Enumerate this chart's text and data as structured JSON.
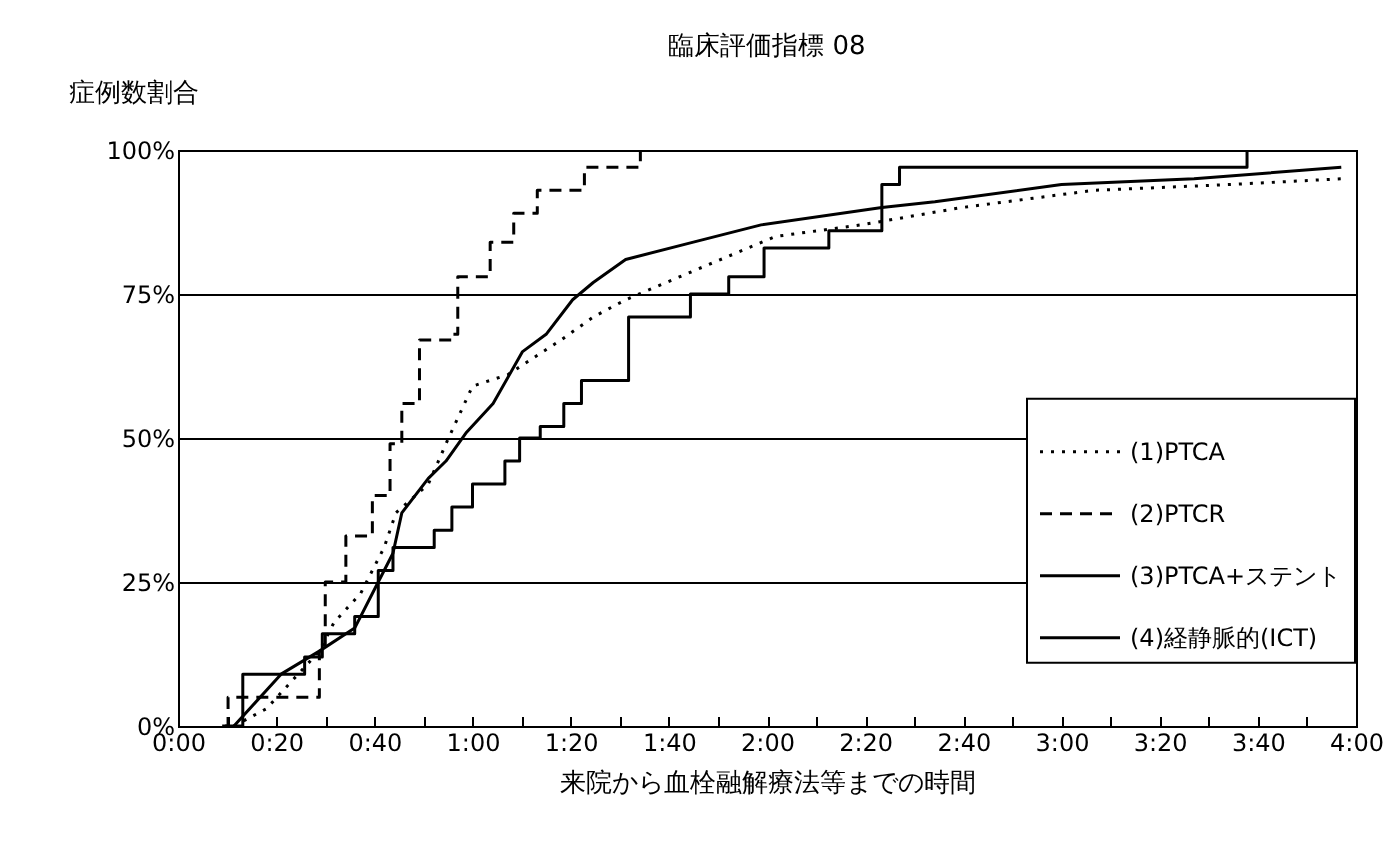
{
  "chart_data": {
    "type": "step",
    "title": "臨床評価指標 08",
    "xlabel": "来院から血栓融解療法等までの時間",
    "ylabel": "症例数割合",
    "xlim": [
      0,
      4
    ],
    "ylim": [
      0,
      100
    ],
    "xticks": [
      {
        "value": 0,
        "label": "0:00"
      },
      {
        "value": 0.1667,
        "label": null
      },
      {
        "value": 0.3333,
        "label": "0:20"
      },
      {
        "value": 0.5,
        "label": null
      },
      {
        "value": 0.6667,
        "label": "0:40"
      },
      {
        "value": 0.8333,
        "label": null
      },
      {
        "value": 1,
        "label": "1:00"
      },
      {
        "value": 1.1667,
        "label": null
      },
      {
        "value": 1.3333,
        "label": "1:20"
      },
      {
        "value": 1.5,
        "label": null
      },
      {
        "value": 1.6667,
        "label": "1:40"
      },
      {
        "value": 1.8333,
        "label": null
      },
      {
        "value": 2,
        "label": "2:00"
      },
      {
        "value": 2.1667,
        "label": null
      },
      {
        "value": 2.3333,
        "label": "2:20"
      },
      {
        "value": 2.5,
        "label": null
      },
      {
        "value": 2.6667,
        "label": "2:40"
      },
      {
        "value": 2.8333,
        "label": null
      },
      {
        "value": 3,
        "label": "3:00"
      },
      {
        "value": 3.1667,
        "label": null
      },
      {
        "value": 3.3333,
        "label": "3:20"
      },
      {
        "value": 3.5,
        "label": null
      },
      {
        "value": 3.6667,
        "label": "3:40"
      },
      {
        "value": 3.8333,
        "label": null
      },
      {
        "value": 4,
        "label": "4:00"
      }
    ],
    "yticks": [
      {
        "value": 0,
        "label": "0%"
      },
      {
        "value": 25,
        "label": "25%"
      },
      {
        "value": 50,
        "label": "50%"
      },
      {
        "value": 75,
        "label": "75%"
      },
      {
        "value": 100,
        "label": "100%"
      }
    ],
    "grid": "y",
    "legend": "right",
    "series": [
      {
        "name": "(1)PTCA",
        "type": "line",
        "line_style": "dotted",
        "color": "#000000",
        "x": [
          0.19,
          0.3,
          0.48,
          0.53,
          0.62,
          0.7,
          0.74,
          0.85,
          0.91,
          1.0,
          1.12,
          1.21,
          1.3,
          1.41,
          1.52,
          1.75,
          2.03,
          2.32,
          2.66,
          3.11,
          3.57,
          3.95
        ],
        "values": [
          0,
          3,
          13,
          18,
          23,
          31,
          37,
          42,
          49,
          59,
          61,
          64,
          67,
          71,
          74,
          79,
          85,
          87,
          90,
          93,
          94,
          95
        ]
      },
      {
        "name": "(2)PTCR",
        "line_style": "dashed",
        "color": "#000000",
        "x": [
          0.16,
          0.17,
          0.48,
          0.5,
          0.57,
          0.66,
          0.72,
          0.76,
          0.82,
          0.93,
          0.95,
          1.06,
          1.14,
          1.22,
          1.38,
          1.57
        ],
        "values": [
          0,
          5,
          13,
          25,
          33,
          40,
          49,
          56,
          67,
          68,
          78,
          84,
          89,
          93,
          97,
          100
        ]
      },
      {
        "name": "(3)PTCA+ステント",
        "type": "line",
        "line_style": "solid",
        "color": "#000000",
        "x": [
          0.19,
          0.35,
          0.48,
          0.6,
          0.67,
          0.73,
          0.76,
          0.85,
          0.91,
          0.98,
          1.07,
          1.17,
          1.25,
          1.34,
          1.41,
          1.52,
          1.75,
          1.98,
          2.39,
          2.57,
          3.0,
          3.45,
          3.95
        ],
        "values": [
          0,
          9,
          13,
          17,
          24,
          30,
          37,
          43,
          46,
          51,
          56,
          65,
          68,
          74,
          77,
          81,
          84,
          87,
          90,
          91,
          94,
          95,
          97
        ]
      },
      {
        "name": "(4)経静脈的(ICT)",
        "line_style": "solid",
        "color": "#000000",
        "x": [
          0.15,
          0.22,
          0.43,
          0.49,
          0.6,
          0.68,
          0.73,
          0.87,
          0.93,
          1.0,
          1.11,
          1.16,
          1.23,
          1.31,
          1.37,
          1.53,
          1.74,
          1.87,
          1.99,
          2.21,
          2.39,
          2.45,
          3.63,
          4.0
        ],
        "values": [
          0,
          9,
          12,
          16,
          19,
          27,
          31,
          34,
          38,
          42,
          46,
          50,
          52,
          56,
          60,
          71,
          75,
          78,
          83,
          86,
          94,
          97,
          100,
          100
        ]
      }
    ]
  }
}
